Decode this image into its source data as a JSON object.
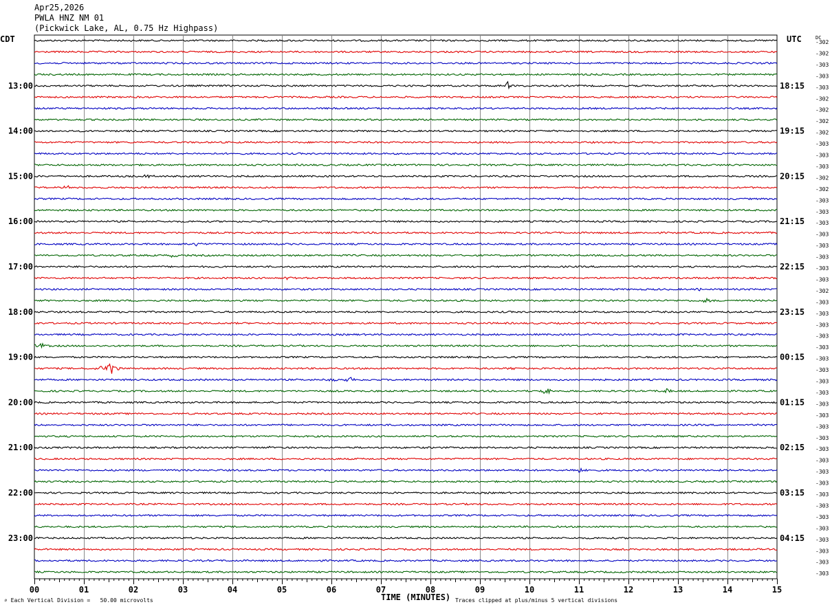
{
  "header": {
    "date": "Apr25,2026",
    "station": "PWLA HNZ NM 01",
    "location": "(Pickwick Lake, AL, 0.75 Hz Highpass)"
  },
  "left_zone": "CDT",
  "right_zone": "UTC",
  "dc_label": "DC",
  "footer": {
    "division_note": "Each Vertical Division =   50.00 microvolts",
    "clip_note": "Traces clipped at plus/minus 5 vertical divisions"
  },
  "chart_data": {
    "type": "line",
    "xlabel": "TIME (MINUTES)",
    "xlim": [
      0,
      15
    ],
    "x_ticks": [
      "00",
      "01",
      "02",
      "03",
      "04",
      "05",
      "06",
      "07",
      "08",
      "09",
      "10",
      "11",
      "12",
      "13",
      "14",
      "15"
    ],
    "lines_per_hour": 4,
    "minutes_per_line": 15,
    "trace_colors": [
      "#000000",
      "#e00000",
      "#0000c0",
      "#006400"
    ],
    "left_hour_labels": [
      {
        "line": 4,
        "text": "13:00"
      },
      {
        "line": 8,
        "text": "14:00"
      },
      {
        "line": 12,
        "text": "15:00"
      },
      {
        "line": 16,
        "text": "16:00"
      },
      {
        "line": 20,
        "text": "17:00"
      },
      {
        "line": 24,
        "text": "18:00"
      },
      {
        "line": 28,
        "text": "19:00"
      },
      {
        "line": 32,
        "text": "20:00"
      },
      {
        "line": 36,
        "text": "21:00"
      },
      {
        "line": 40,
        "text": "22:00"
      },
      {
        "line": 44,
        "text": "23:00"
      }
    ],
    "right_hour_labels": [
      {
        "line": 4,
        "text": "18:15"
      },
      {
        "line": 8,
        "text": "19:15"
      },
      {
        "line": 12,
        "text": "20:15"
      },
      {
        "line": 16,
        "text": "21:15"
      },
      {
        "line": 20,
        "text": "22:15"
      },
      {
        "line": 24,
        "text": "23:15"
      },
      {
        "line": 28,
        "text": "00:15"
      },
      {
        "line": 32,
        "text": "01:15"
      },
      {
        "line": 36,
        "text": "02:15"
      },
      {
        "line": 40,
        "text": "03:15"
      },
      {
        "line": 44,
        "text": "04:15"
      }
    ],
    "dc_offsets": [
      "-302",
      "-302",
      "-303",
      "-303",
      "-303",
      "-302",
      "-302",
      "-302",
      "-302",
      "-303",
      "-303",
      "-303",
      "-302",
      "-302",
      "-303",
      "-303",
      "-303",
      "-303",
      "-303",
      "-303",
      "-303",
      "-303",
      "-302",
      "-303",
      "-303",
      "-303",
      "-303",
      "-303",
      "-303",
      "-303",
      "-303",
      "-303",
      "-303",
      "-303",
      "-303",
      "-303",
      "-303",
      "-303",
      "-303",
      "-303",
      "-303",
      "-303",
      "-303",
      "-303",
      "-303",
      "-303",
      "-303",
      "-303"
    ],
    "events": [
      {
        "line": 4,
        "minute": 9.55,
        "amp": 7
      },
      {
        "line": 12,
        "minute": 2.3,
        "amp": 3
      },
      {
        "line": 13,
        "minute": 0.65,
        "amp": 3
      },
      {
        "line": 18,
        "minute": 3.3,
        "amp": 3
      },
      {
        "line": 19,
        "minute": 2.8,
        "amp": 3
      },
      {
        "line": 21,
        "minute": 5.1,
        "amp": 3
      },
      {
        "line": 22,
        "minute": 13.45,
        "amp": 3
      },
      {
        "line": 23,
        "minute": 13.6,
        "amp": 5
      },
      {
        "line": 27,
        "minute": 0.1,
        "amp": 7
      },
      {
        "line": 29,
        "minute": 1.55,
        "amp": 10
      },
      {
        "line": 29,
        "minute": 1.35,
        "amp": 4
      },
      {
        "line": 29,
        "minute": 9.65,
        "amp": 4
      },
      {
        "line": 30,
        "minute": 6.4,
        "amp": 4
      },
      {
        "line": 30,
        "minute": 6.0,
        "amp": 3
      },
      {
        "line": 31,
        "minute": 10.35,
        "amp": 6
      },
      {
        "line": 31,
        "minute": 12.8,
        "amp": 4
      },
      {
        "line": 36,
        "minute": 4.8,
        "amp": 3
      },
      {
        "line": 38,
        "minute": 11.0,
        "amp": 5
      }
    ]
  }
}
